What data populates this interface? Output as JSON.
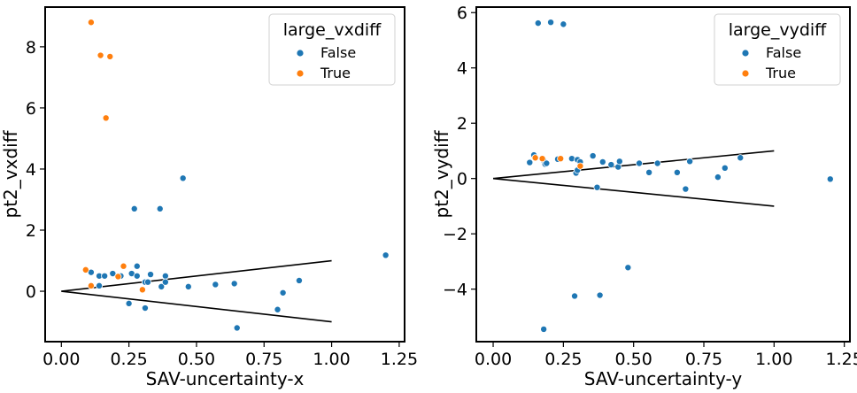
{
  "chart_data": [
    {
      "type": "scatter",
      "title": "",
      "xlabel": "SAV-uncertainty-x",
      "ylabel": "pt2_vxdiff",
      "xlim": [
        -0.06,
        1.27
      ],
      "ylim": [
        -1.65,
        9.3
      ],
      "xticks": [
        0.0,
        0.25,
        0.5,
        0.75,
        1.0,
        1.25
      ],
      "xtick_labels": [
        "0.00",
        "0.25",
        "0.50",
        "0.75",
        "1.00",
        "1.25"
      ],
      "yticks": [
        0,
        2,
        4,
        6,
        8
      ],
      "ytick_labels": [
        "0",
        "2",
        "4",
        "6",
        "8"
      ],
      "grid": false,
      "legend": {
        "placement": "top-right",
        "title": "large_vxdiff",
        "entries": [
          {
            "label": "False",
            "color": "#1f77b4"
          },
          {
            "label": "True",
            "color": "#ff7f0e"
          }
        ]
      },
      "lines": [
        {
          "color": "#000000",
          "points": [
            [
              0,
              0
            ],
            [
              1.0,
              1.0
            ]
          ]
        },
        {
          "color": "#000000",
          "points": [
            [
              0,
              0
            ],
            [
              1.0,
              -1.0
            ]
          ]
        }
      ],
      "series": [
        {
          "name": "False",
          "color": "#1f77b4",
          "points": [
            [
              0.09,
              0.7
            ],
            [
              0.11,
              0.62
            ],
            [
              0.14,
              0.5
            ],
            [
              0.14,
              0.18
            ],
            [
              0.16,
              0.5
            ],
            [
              0.19,
              0.58
            ],
            [
              0.22,
              0.5
            ],
            [
              0.25,
              -0.4
            ],
            [
              0.26,
              0.58
            ],
            [
              0.27,
              2.7
            ],
            [
              0.28,
              0.82
            ],
            [
              0.28,
              0.5
            ],
            [
              0.31,
              0.3
            ],
            [
              0.31,
              -0.55
            ],
            [
              0.32,
              0.3
            ],
            [
              0.33,
              0.55
            ],
            [
              0.365,
              2.7
            ],
            [
              0.37,
              0.15
            ],
            [
              0.385,
              0.5
            ],
            [
              0.385,
              0.3
            ],
            [
              0.45,
              3.7
            ],
            [
              0.47,
              0.15
            ],
            [
              0.57,
              0.22
            ],
            [
              0.64,
              0.25
            ],
            [
              0.65,
              -1.2
            ],
            [
              0.8,
              -0.6
            ],
            [
              0.82,
              -0.05
            ],
            [
              0.88,
              0.35
            ],
            [
              1.2,
              1.18
            ]
          ]
        },
        {
          "name": "True",
          "color": "#ff7f0e",
          "points": [
            [
              0.09,
              0.7
            ],
            [
              0.11,
              0.18
            ],
            [
              0.11,
              8.8
            ],
            [
              0.145,
              7.72
            ],
            [
              0.165,
              5.67
            ],
            [
              0.18,
              7.68
            ],
            [
              0.21,
              0.48
            ],
            [
              0.23,
              0.82
            ],
            [
              0.3,
              0.05
            ]
          ]
        }
      ]
    },
    {
      "type": "scatter",
      "title": "",
      "xlabel": "SAV-uncertainty-y",
      "ylabel": "pt2_vydiff",
      "xlim": [
        -0.06,
        1.27
      ],
      "ylim": [
        -5.9,
        6.2
      ],
      "xticks": [
        0.0,
        0.25,
        0.5,
        0.75,
        1.0,
        1.25
      ],
      "xtick_labels": [
        "0.00",
        "0.25",
        "0.50",
        "0.75",
        "1.00",
        "1.25"
      ],
      "yticks": [
        -4,
        -2,
        0,
        2,
        4,
        6
      ],
      "ytick_labels": [
        "−4",
        "−2",
        "0",
        "2",
        "4",
        "6"
      ],
      "grid": false,
      "legend": {
        "placement": "top-right",
        "title": "large_vydiff",
        "entries": [
          {
            "label": "False",
            "color": "#1f77b4"
          },
          {
            "label": "True",
            "color": "#ff7f0e"
          }
        ]
      },
      "lines": [
        {
          "color": "#000000",
          "points": [
            [
              0,
              0
            ],
            [
              1.0,
              1.0
            ]
          ]
        },
        {
          "color": "#000000",
          "points": [
            [
              0,
              0
            ],
            [
              1.0,
              -1.0
            ]
          ]
        }
      ],
      "series": [
        {
          "name": "False",
          "color": "#1f77b4",
          "points": [
            [
              0.13,
              0.58
            ],
            [
              0.145,
              0.85
            ],
            [
              0.16,
              5.62
            ],
            [
              0.18,
              0.65
            ],
            [
              0.185,
              0.52
            ],
            [
              0.19,
              0.55
            ],
            [
              0.18,
              -5.45
            ],
            [
              0.205,
              5.65
            ],
            [
              0.23,
              0.7
            ],
            [
              0.25,
              5.58
            ],
            [
              0.28,
              0.72
            ],
            [
              0.29,
              -4.25
            ],
            [
              0.295,
              0.2
            ],
            [
              0.3,
              0.3
            ],
            [
              0.3,
              0.68
            ],
            [
              0.31,
              0.6
            ],
            [
              0.355,
              0.82
            ],
            [
              0.37,
              -0.32
            ],
            [
              0.38,
              -4.22
            ],
            [
              0.39,
              0.6
            ],
            [
              0.42,
              0.5
            ],
            [
              0.445,
              0.42
            ],
            [
              0.45,
              0.62
            ],
            [
              0.48,
              -3.22
            ],
            [
              0.52,
              0.55
            ],
            [
              0.555,
              0.22
            ],
            [
              0.585,
              0.55
            ],
            [
              0.655,
              0.22
            ],
            [
              0.685,
              -0.38
            ],
            [
              0.7,
              0.62
            ],
            [
              0.8,
              0.05
            ],
            [
              0.825,
              0.38
            ],
            [
              0.88,
              0.75
            ],
            [
              1.2,
              -0.02
            ]
          ]
        },
        {
          "name": "True",
          "color": "#ff7f0e",
          "points": [
            [
              0.15,
              0.75
            ],
            [
              0.175,
              0.72
            ],
            [
              0.24,
              0.72
            ],
            [
              0.31,
              0.45
            ]
          ]
        }
      ]
    }
  ]
}
